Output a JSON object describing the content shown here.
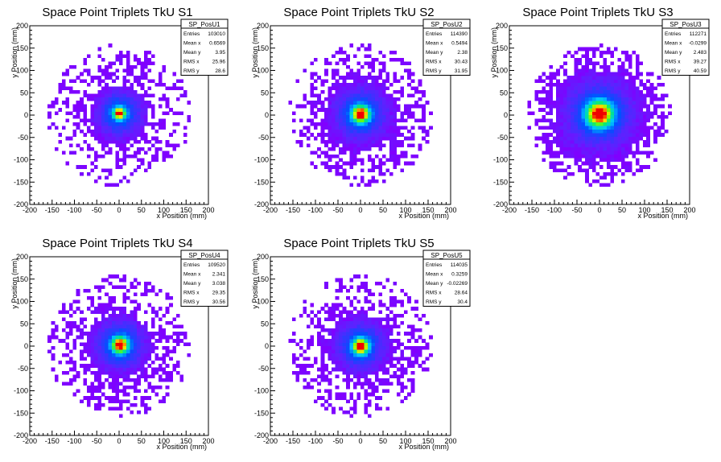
{
  "chart_data": [
    {
      "type": "heatmap",
      "title": "Space Point Triplets TkU S1",
      "xlabel": "x Position (mm)",
      "ylabel": "y Position (mm)",
      "xlim": [
        -200,
        200
      ],
      "ylim": [
        -200,
        200
      ],
      "xticks": [
        -200,
        -150,
        -100,
        -50,
        0,
        50,
        100,
        150,
        200
      ],
      "yticks": [
        -200,
        -150,
        -100,
        -50,
        0,
        50,
        100,
        150,
        200
      ],
      "stats": {
        "name": "SP_PosU1",
        "rows": [
          {
            "label": "Entries",
            "value": "103010"
          },
          {
            "label": "Mean x",
            "value": "0.6569"
          },
          {
            "label": "Mean y",
            "value": "3.95"
          },
          {
            "label": "RMS x",
            "value": "25.96"
          },
          {
            "label": "RMS y",
            "value": "28.6"
          }
        ]
      },
      "distribution": {
        "bin_width_mm": 8,
        "radius_mm": 160,
        "core_x_mm": 0.66,
        "core_y_mm": 3.95,
        "core_sigma_mm": 8,
        "halo_sigma_mm": 30,
        "fill_density": 0.55
      }
    },
    {
      "type": "heatmap",
      "title": "Space Point Triplets TkU S2",
      "xlabel": "x Position (mm)",
      "ylabel": "y Position (mm)",
      "xlim": [
        -200,
        200
      ],
      "ylim": [
        -200,
        200
      ],
      "xticks": [
        -200,
        -150,
        -100,
        -50,
        0,
        50,
        100,
        150,
        200
      ],
      "yticks": [
        -200,
        -150,
        -100,
        -50,
        0,
        50,
        100,
        150,
        200
      ],
      "stats": {
        "name": "SP_PosU2",
        "rows": [
          {
            "label": "Entries",
            "value": "114390"
          },
          {
            "label": "Mean x",
            "value": "0.5494"
          },
          {
            "label": "Mean y",
            "value": "2.38"
          },
          {
            "label": "RMS x",
            "value": "30.43"
          },
          {
            "label": "RMS y",
            "value": "31.95"
          }
        ]
      },
      "distribution": {
        "bin_width_mm": 8,
        "radius_mm": 160,
        "core_x_mm": 0.55,
        "core_y_mm": 2.38,
        "core_sigma_mm": 12,
        "halo_sigma_mm": 35,
        "fill_density": 0.65
      }
    },
    {
      "type": "heatmap",
      "title": "Space Point Triplets TkU S3",
      "xlabel": "x Position (mm)",
      "ylabel": "y Position (mm)",
      "xlim": [
        -200,
        200
      ],
      "ylim": [
        -200,
        200
      ],
      "xticks": [
        -200,
        -150,
        -100,
        -50,
        0,
        50,
        100,
        150,
        200
      ],
      "yticks": [
        -200,
        -150,
        -100,
        -50,
        0,
        50,
        100,
        150,
        200
      ],
      "stats": {
        "name": "SP_PosU3",
        "rows": [
          {
            "label": "Entries",
            "value": "112271"
          },
          {
            "label": "Mean x",
            "value": "-0.0299"
          },
          {
            "label": "Mean y",
            "value": "2.483"
          },
          {
            "label": "RMS x",
            "value": "39.27"
          },
          {
            "label": "RMS y",
            "value": "40.59"
          }
        ]
      },
      "distribution": {
        "bin_width_mm": 8,
        "radius_mm": 160,
        "core_x_mm": 0.0,
        "core_y_mm": 2.48,
        "core_sigma_mm": 18,
        "halo_sigma_mm": 45,
        "fill_density": 0.8
      }
    },
    {
      "type": "heatmap",
      "title": "Space Point Triplets TkU S4",
      "xlabel": "x Position (mm)",
      "ylabel": "y Position (mm)",
      "xlim": [
        -200,
        200
      ],
      "ylim": [
        -200,
        200
      ],
      "xticks": [
        -200,
        -150,
        -100,
        -50,
        0,
        50,
        100,
        150,
        200
      ],
      "yticks": [
        -200,
        -150,
        -100,
        -50,
        0,
        50,
        100,
        150,
        200
      ],
      "stats": {
        "name": "SP_PosU4",
        "rows": [
          {
            "label": "Entries",
            "value": "109520"
          },
          {
            "label": "Mean x",
            "value": "2.341"
          },
          {
            "label": "Mean y",
            "value": "3.038"
          },
          {
            "label": "RMS x",
            "value": "29.35"
          },
          {
            "label": "RMS y",
            "value": "30.56"
          }
        ]
      },
      "distribution": {
        "bin_width_mm": 8,
        "radius_mm": 160,
        "core_x_mm": 2.34,
        "core_y_mm": 3.04,
        "core_sigma_mm": 11,
        "halo_sigma_mm": 33,
        "fill_density": 0.62
      }
    },
    {
      "type": "heatmap",
      "title": "Space Point Triplets TkU S5",
      "xlabel": "x Position (mm)",
      "ylabel": "y Position (mm)",
      "xlim": [
        -200,
        200
      ],
      "ylim": [
        -200,
        200
      ],
      "xticks": [
        -200,
        -150,
        -100,
        -50,
        0,
        50,
        100,
        150,
        200
      ],
      "yticks": [
        -200,
        -150,
        -100,
        -50,
        0,
        50,
        100,
        150,
        200
      ],
      "stats": {
        "name": "SP_PosU5",
        "rows": [
          {
            "label": "Entries",
            "value": "114035"
          },
          {
            "label": "Mean x",
            "value": "0.3259"
          },
          {
            "label": "Mean y",
            "value": "-0.02269"
          },
          {
            "label": "RMS x",
            "value": "28.64"
          },
          {
            "label": "RMS y",
            "value": "30.4"
          }
        ]
      },
      "distribution": {
        "bin_width_mm": 8,
        "radius_mm": 160,
        "core_x_mm": 0.33,
        "core_y_mm": -0.02,
        "core_sigma_mm": 11,
        "halo_sigma_mm": 32,
        "fill_density": 0.6
      }
    }
  ]
}
